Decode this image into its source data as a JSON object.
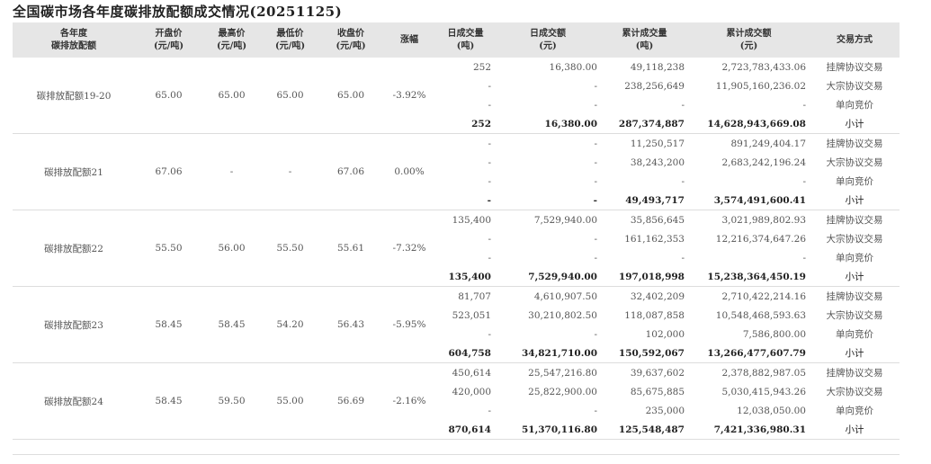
{
  "title": "全国碳市场各年度碳排放配额成交情况(20251125)",
  "headers": [
    "各年度\n碳排放配额",
    "开盘价\n(元/吨)",
    "最高价\n(元/吨)",
    "最低价\n(元/吨)",
    "收盘价\n(元/吨)",
    "涨幅",
    "日成交量\n(吨)",
    "日成交额\n(元)",
    "累计成交量\n(吨)",
    "累计成交额\n(元)",
    "交易方式"
  ],
  "groups": [
    {
      "name": "碳排放配额19-20",
      "open": "65.00",
      "high": "65.00",
      "low": "65.00",
      "close": "65.00",
      "change": "-3.92%",
      "rows": [
        {
          "day_vol": "252",
          "day_amt": "16,380.00",
          "cum_vol": "49,118,238",
          "cum_amt": "2,723,783,433.06",
          "method": "挂牌协议交易"
        },
        {
          "day_vol": "-",
          "day_amt": "-",
          "cum_vol": "238,256,649",
          "cum_amt": "11,905,160,236.02",
          "method": "大宗协议交易"
        },
        {
          "day_vol": "-",
          "day_amt": "-",
          "cum_vol": "-",
          "cum_amt": "-",
          "method": "单向竞价"
        },
        {
          "day_vol": "252",
          "day_amt": "16,380.00",
          "cum_vol": "287,374,887",
          "cum_amt": "14,628,943,669.08",
          "method": "小计"
        }
      ]
    },
    {
      "name": "碳排放配额21",
      "open": "67.06",
      "high": "-",
      "low": "-",
      "close": "67.06",
      "change": "0.00%",
      "rows": [
        {
          "day_vol": "-",
          "day_amt": "-",
          "cum_vol": "11,250,517",
          "cum_amt": "891,249,404.17",
          "method": "挂牌协议交易"
        },
        {
          "day_vol": "-",
          "day_amt": "-",
          "cum_vol": "38,243,200",
          "cum_amt": "2,683,242,196.24",
          "method": "大宗协议交易"
        },
        {
          "day_vol": "-",
          "day_amt": "-",
          "cum_vol": "-",
          "cum_amt": "-",
          "method": "单向竞价"
        },
        {
          "day_vol": "-",
          "day_amt": "-",
          "cum_vol": "49,493,717",
          "cum_amt": "3,574,491,600.41",
          "method": "小计"
        }
      ]
    },
    {
      "name": "碳排放配额22",
      "open": "55.50",
      "high": "56.00",
      "low": "55.50",
      "close": "55.61",
      "change": "-7.32%",
      "rows": [
        {
          "day_vol": "135,400",
          "day_amt": "7,529,940.00",
          "cum_vol": "35,856,645",
          "cum_amt": "3,021,989,802.93",
          "method": "挂牌协议交易"
        },
        {
          "day_vol": "-",
          "day_amt": "-",
          "cum_vol": "161,162,353",
          "cum_amt": "12,216,374,647.26",
          "method": "大宗协议交易"
        },
        {
          "day_vol": "-",
          "day_amt": "-",
          "cum_vol": "-",
          "cum_amt": "-",
          "method": "单向竞价"
        },
        {
          "day_vol": "135,400",
          "day_amt": "7,529,940.00",
          "cum_vol": "197,018,998",
          "cum_amt": "15,238,364,450.19",
          "method": "小计"
        }
      ]
    },
    {
      "name": "碳排放配额23",
      "open": "58.45",
      "high": "58.45",
      "low": "54.20",
      "close": "56.43",
      "change": "-5.95%",
      "rows": [
        {
          "day_vol": "81,707",
          "day_amt": "4,610,907.50",
          "cum_vol": "32,402,209",
          "cum_amt": "2,710,422,214.16",
          "method": "挂牌协议交易"
        },
        {
          "day_vol": "523,051",
          "day_amt": "30,210,802.50",
          "cum_vol": "118,087,858",
          "cum_amt": "10,548,468,593.63",
          "method": "大宗协议交易"
        },
        {
          "day_vol": "-",
          "day_amt": "-",
          "cum_vol": "102,000",
          "cum_amt": "7,586,800.00",
          "method": "单向竞价"
        },
        {
          "day_vol": "604,758",
          "day_amt": "34,821,710.00",
          "cum_vol": "150,592,067",
          "cum_amt": "13,266,477,607.79",
          "method": "小计"
        }
      ]
    },
    {
      "name": "碳排放配额24",
      "open": "58.45",
      "high": "59.50",
      "low": "55.00",
      "close": "56.69",
      "change": "-2.16%",
      "rows": [
        {
          "day_vol": "450,614",
          "day_amt": "25,547,216.80",
          "cum_vol": "39,637,602",
          "cum_amt": "2,378,882,987.05",
          "method": "挂牌协议交易"
        },
        {
          "day_vol": "420,000",
          "day_amt": "25,822,900.00",
          "cum_vol": "85,675,885",
          "cum_amt": "5,030,415,943.26",
          "method": "大宗协议交易"
        },
        {
          "day_vol": "-",
          "day_amt": "-",
          "cum_vol": "235,000",
          "cum_amt": "12,038,050.00",
          "method": "单向竞价"
        },
        {
          "day_vol": "870,614",
          "day_amt": "51,370,116.80",
          "cum_vol": "125,548,487",
          "cum_amt": "7,421,336,980.31",
          "method": "小计"
        }
      ]
    }
  ]
}
